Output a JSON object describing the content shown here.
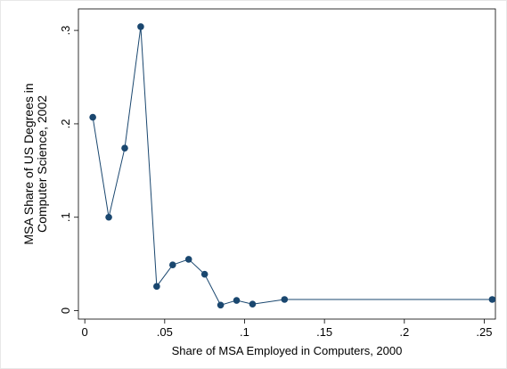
{
  "chart_data": {
    "type": "line",
    "x_label": "Share of MSA Employed in Computers, 2000",
    "y_label": [
      "MSA Share of US Degrees in",
      "Computer Science, 2002"
    ],
    "x": [
      0.005,
      0.015,
      0.025,
      0.035,
      0.045,
      0.055,
      0.065,
      0.075,
      0.085,
      0.095,
      0.105,
      0.125,
      0.255
    ],
    "series": [
      {
        "color": "#1a476f",
        "values": [
          0.207,
          0.1,
          0.174,
          0.304,
          0.026,
          0.049,
          0.055,
          0.039,
          0.006,
          0.011,
          0.007,
          0.012,
          0.012
        ]
      }
    ],
    "xlim": [
      -0.004,
      0.257
    ],
    "ylim": [
      -0.009,
      0.323
    ],
    "xticks": [
      0,
      {
        "value": 0.05,
        "label": ".05"
      },
      {
        "value": 0.1,
        "label": ".1"
      },
      {
        "value": 0.15,
        "label": ".15"
      },
      {
        "value": 0.2,
        "label": ".2"
      },
      {
        "value": 0.25,
        "label": ".25"
      }
    ],
    "yticks": [
      0,
      {
        "value": 0.1,
        "label": ".1"
      },
      {
        "value": 0.2,
        "label": ".2"
      },
      {
        "value": 0.3,
        "label": ".3"
      }
    ]
  }
}
